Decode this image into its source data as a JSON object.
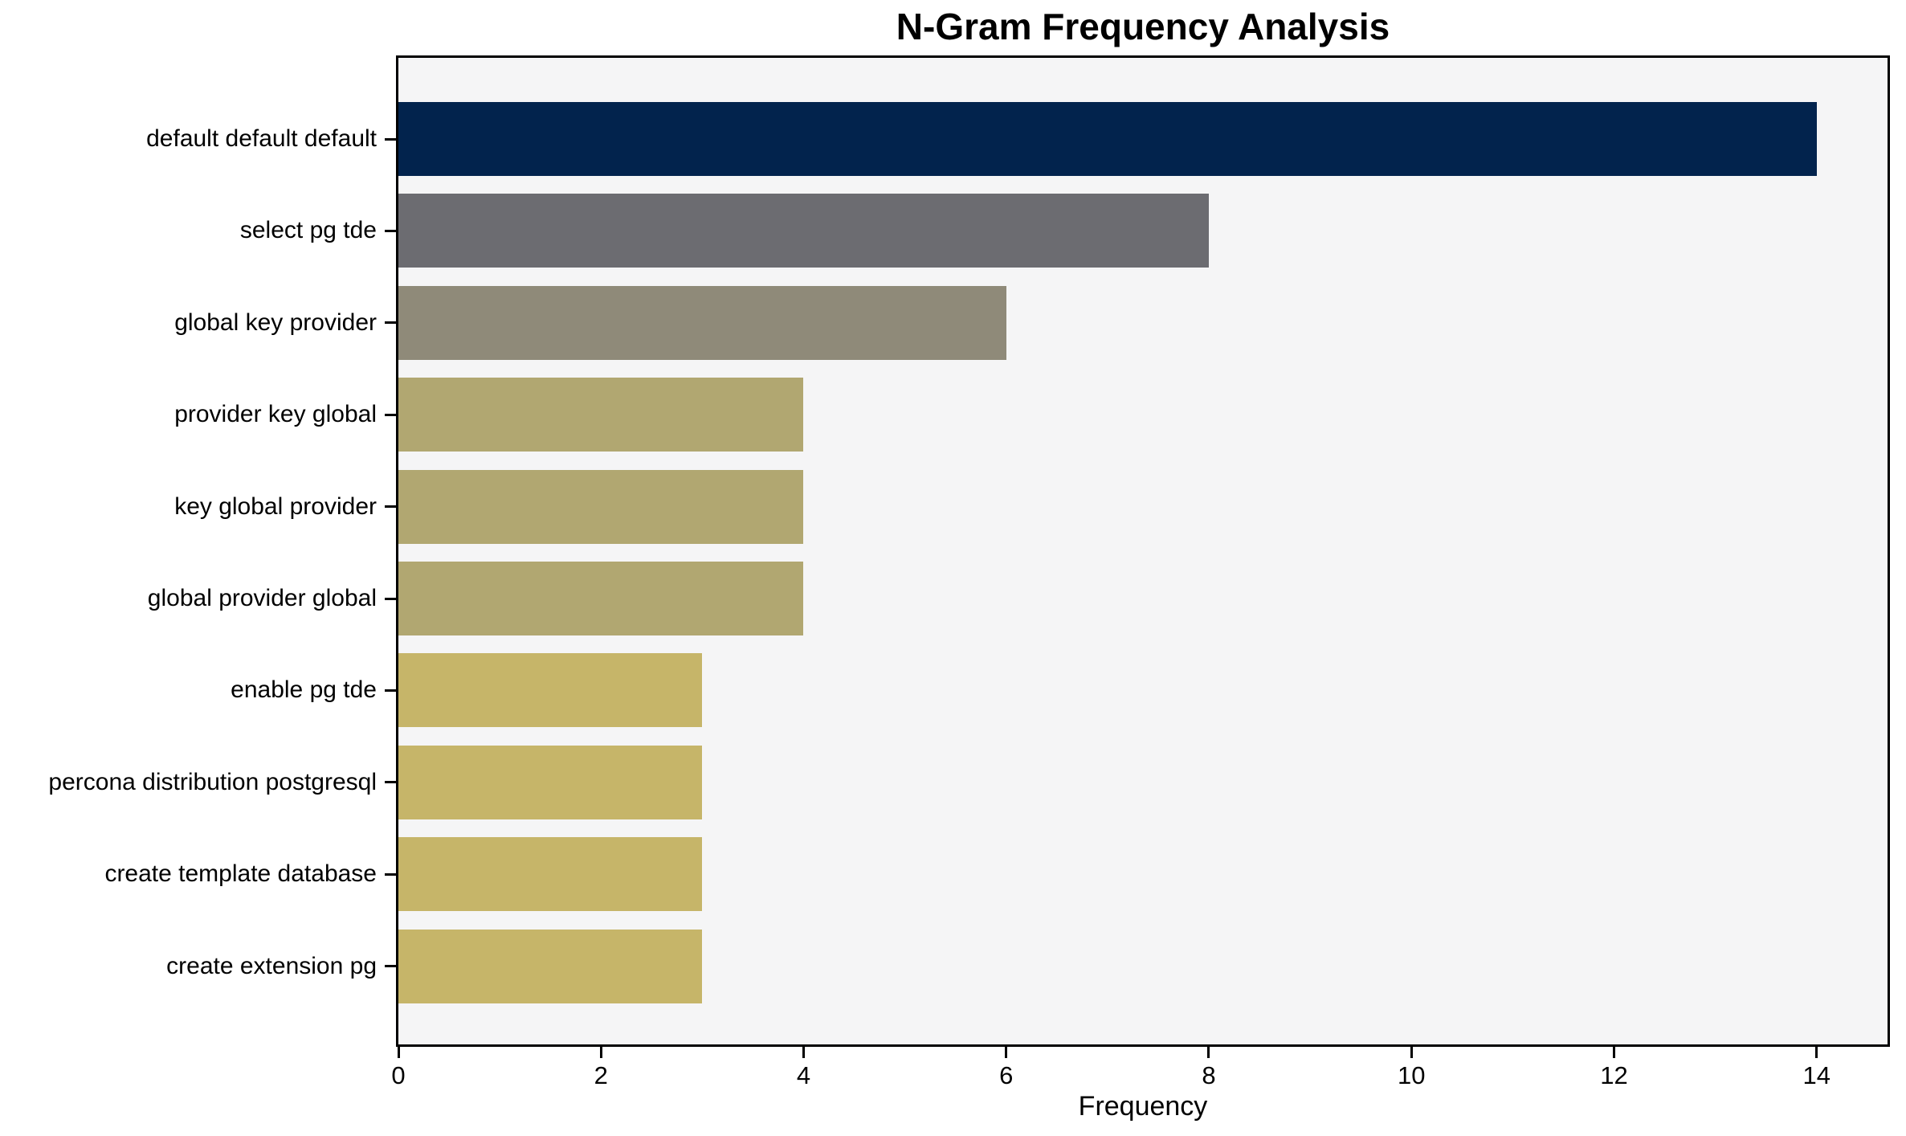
{
  "chart_data": {
    "type": "bar",
    "orientation": "horizontal",
    "title": "N-Gram Frequency Analysis",
    "xlabel": "Frequency",
    "ylabel": "",
    "categories": [
      "default default default",
      "select pg tde",
      "global key provider",
      "provider key global",
      "key global provider",
      "global provider global",
      "enable pg tde",
      "percona distribution postgresql",
      "create template database",
      "create extension pg"
    ],
    "values": [
      14,
      8,
      6,
      4,
      4,
      4,
      3,
      3,
      3,
      3
    ],
    "bar_colors": [
      "#02234d",
      "#6c6c71",
      "#8f8a79",
      "#b1a771",
      "#b1a771",
      "#b1a771",
      "#c6b569",
      "#c6b569",
      "#c6b569",
      "#c6b569"
    ],
    "xlim": [
      0,
      14.7
    ],
    "x_ticks": [
      0,
      2,
      4,
      6,
      8,
      10,
      12,
      14
    ],
    "grid": false,
    "legend": "none"
  },
  "colors": {
    "figure_bg": "#ffffff",
    "plot_bg": "#f5f5f6",
    "axis": "#000000",
    "text": "#000000"
  }
}
